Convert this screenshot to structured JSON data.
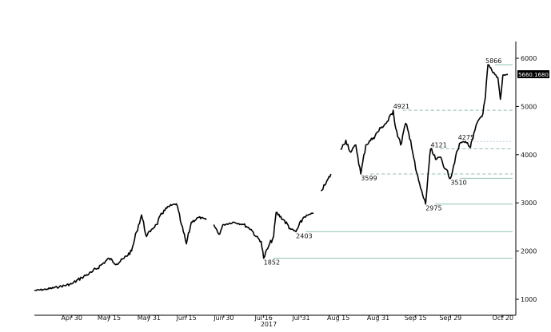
{
  "chart_data": {
    "type": "line",
    "title": "",
    "xlabel": "2017",
    "ylabel": "",
    "ylim": [
      700,
      6350
    ],
    "xlim": [
      "2017-04-15",
      "2017-10-24"
    ],
    "grid": false,
    "y_ticks": [
      1000,
      2000,
      3000,
      4000,
      5000,
      6000
    ],
    "x_ticks": [
      {
        "date": "2017-04-30",
        "label": "Apr 30"
      },
      {
        "date": "2017-05-15",
        "label": "May 15"
      },
      {
        "date": "2017-05-31",
        "label": "May 31"
      },
      {
        "date": "2017-06-15",
        "label": "Jun 15"
      },
      {
        "date": "2017-06-30",
        "label": "Jun 30"
      },
      {
        "date": "2017-07-16",
        "label": "Jul 16"
      },
      {
        "date": "2017-07-31",
        "label": "Jul 31"
      },
      {
        "date": "2017-08-15",
        "label": "Aug 15"
      },
      {
        "date": "2017-08-31",
        "label": "Aug 31"
      },
      {
        "date": "2017-09-15",
        "label": "Sep 15"
      },
      {
        "date": "2017-09-29",
        "label": "Sep 29"
      },
      {
        "date": "2017-10-20",
        "label": "Oct 20"
      }
    ],
    "last_value_label": "5660.1680",
    "series": [
      {
        "color": "#000000",
        "points": [
          [
            "2017-04-15",
            1180
          ],
          [
            "2017-04-20",
            1210
          ],
          [
            "2017-04-25",
            1260
          ],
          [
            "2017-04-30",
            1320
          ],
          [
            "2017-05-04",
            1450
          ],
          [
            "2017-05-08",
            1560
          ],
          [
            "2017-05-12",
            1720
          ],
          [
            "2017-05-15",
            1850
          ],
          [
            "2017-05-18",
            1730
          ],
          [
            "2017-05-21",
            1850
          ],
          [
            "2017-05-24",
            2000
          ],
          [
            "2017-05-26",
            2400
          ],
          [
            "2017-05-28",
            2750
          ],
          [
            "2017-05-30",
            2300
          ],
          [
            "2017-06-01",
            2450
          ],
          [
            "2017-06-03",
            2550
          ],
          [
            "2017-06-06",
            2850
          ],
          [
            "2017-06-09",
            2950
          ],
          [
            "2017-06-11",
            2980
          ],
          [
            "2017-06-13",
            2550
          ],
          [
            "2017-06-15",
            2150
          ],
          [
            "2017-06-17",
            2600
          ],
          [
            "2017-06-20",
            2700
          ],
          [
            "2017-06-23",
            2650
          ],
          null,
          [
            "2017-06-26",
            2550
          ],
          [
            "2017-06-28",
            2350
          ],
          [
            "2017-06-30",
            2550
          ],
          [
            "2017-07-04",
            2600
          ],
          [
            "2017-07-08",
            2550
          ],
          [
            "2017-07-11",
            2450
          ],
          [
            "2017-07-13",
            2300
          ],
          [
            "2017-07-15",
            2200
          ],
          [
            "2017-07-16",
            1852
          ],
          [
            "2017-07-18",
            2100
          ],
          [
            "2017-07-20",
            2300
          ],
          [
            "2017-07-21",
            2800
          ],
          [
            "2017-07-24",
            2650
          ],
          [
            "2017-07-27",
            2450
          ],
          [
            "2017-07-29",
            2403
          ],
          [
            "2017-08-01",
            2700
          ],
          [
            "2017-08-03",
            2750
          ],
          [
            "2017-08-05",
            2780
          ],
          null,
          [
            "2017-08-08",
            3250
          ],
          [
            "2017-08-10",
            3400
          ],
          [
            "2017-08-12",
            3600
          ],
          null,
          [
            "2017-08-16",
            4100
          ],
          [
            "2017-08-18",
            4300
          ],
          [
            "2017-08-20",
            4050
          ],
          [
            "2017-08-22",
            4200
          ],
          [
            "2017-08-24",
            3599
          ],
          [
            "2017-08-26",
            4200
          ],
          [
            "2017-08-29",
            4350
          ],
          [
            "2017-09-01",
            4550
          ],
          [
            "2017-09-04",
            4700
          ],
          [
            "2017-09-06",
            4921
          ],
          [
            "2017-09-07",
            4550
          ],
          [
            "2017-09-09",
            4200
          ],
          [
            "2017-09-11",
            4650
          ],
          [
            "2017-09-13",
            4300
          ],
          [
            "2017-09-15",
            3700
          ],
          [
            "2017-09-17",
            3300
          ],
          [
            "2017-09-19",
            2975
          ],
          [
            "2017-09-20",
            3600
          ],
          [
            "2017-09-21",
            4121
          ],
          [
            "2017-09-23",
            3900
          ],
          [
            "2017-09-25",
            3950
          ],
          [
            "2017-09-27",
            3700
          ],
          [
            "2017-09-29",
            3510
          ],
          [
            "2017-10-01",
            3950
          ],
          [
            "2017-10-03",
            4250
          ],
          [
            "2017-10-05",
            4275
          ],
          [
            "2017-10-07",
            4150
          ],
          [
            "2017-10-08",
            4350
          ],
          [
            "2017-10-10",
            4700
          ],
          [
            "2017-10-12",
            4850
          ],
          [
            "2017-10-13",
            5200
          ],
          [
            "2017-10-14",
            5866
          ],
          [
            "2017-10-16",
            5700
          ],
          [
            "2017-10-18",
            5600
          ],
          [
            "2017-10-19",
            5150
          ],
          [
            "2017-10-20",
            5650
          ],
          [
            "2017-10-22",
            5660
          ]
        ]
      }
    ],
    "levels": [
      {
        "value": 5866,
        "label": "5866",
        "style": "solid",
        "from": "2017-10-13"
      },
      {
        "value": 4921,
        "label": "4921",
        "style": "dashed",
        "from": "2017-09-06"
      },
      {
        "value": 4275,
        "label": "4275",
        "style": "dotted",
        "from": "2017-10-02"
      },
      {
        "value": 4121,
        "label": "4121",
        "style": "dashed",
        "from": "2017-09-21"
      },
      {
        "value": 3599,
        "label": "3599",
        "style": "dashed",
        "from": "2017-08-24"
      },
      {
        "value": 3510,
        "label": "3510",
        "style": "solid",
        "from": "2017-09-29"
      },
      {
        "value": 2975,
        "label": "2975",
        "style": "solid",
        "from": "2017-09-19"
      },
      {
        "value": 2403,
        "label": "2403",
        "style": "solid",
        "from": "2017-07-29"
      },
      {
        "value": 1852,
        "label": "1852",
        "style": "solid",
        "from": "2017-07-16"
      }
    ]
  }
}
